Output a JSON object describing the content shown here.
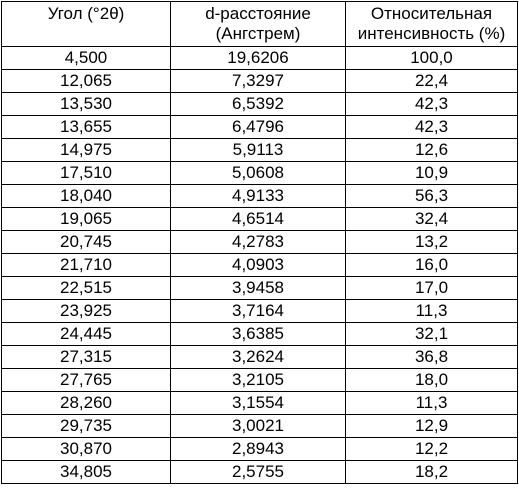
{
  "table": {
    "headers": {
      "angle": "Угол (°2θ)",
      "d_spacing_line1": "d-расстояние",
      "d_spacing_line2": "(Ангстрем)",
      "intensity_line1": "Относительная",
      "intensity_line2": "интенсивность (%)"
    },
    "rows": [
      {
        "angle": "4,500",
        "d": "19,6206",
        "intensity": "100,0"
      },
      {
        "angle": "12,065",
        "d": "7,3297",
        "intensity": "22,4"
      },
      {
        "angle": "13,530",
        "d": "6,5392",
        "intensity": "42,3"
      },
      {
        "angle": "13,655",
        "d": "6,4796",
        "intensity": "42,3"
      },
      {
        "angle": "14,975",
        "d": "5,9113",
        "intensity": "12,6"
      },
      {
        "angle": "17,510",
        "d": "5,0608",
        "intensity": "10,9"
      },
      {
        "angle": "18,040",
        "d": "4,9133",
        "intensity": "56,3"
      },
      {
        "angle": "19,065",
        "d": "4,6514",
        "intensity": "32,4"
      },
      {
        "angle": "20,745",
        "d": "4,2783",
        "intensity": "13,2"
      },
      {
        "angle": "21,710",
        "d": "4,0903",
        "intensity": "16,0"
      },
      {
        "angle": "22,515",
        "d": "3,9458",
        "intensity": "17,0"
      },
      {
        "angle": "23,925",
        "d": "3,7164",
        "intensity": "11,3"
      },
      {
        "angle": "24,445",
        "d": "3,6385",
        "intensity": "32,1"
      },
      {
        "angle": "27,315",
        "d": "3,2624",
        "intensity": "36,8"
      },
      {
        "angle": "27,765",
        "d": "3,2105",
        "intensity": "18,0"
      },
      {
        "angle": "28,260",
        "d": "3,1554",
        "intensity": "11,3"
      },
      {
        "angle": "29,735",
        "d": "3,0021",
        "intensity": "12,9"
      },
      {
        "angle": "30,870",
        "d": "2,8943",
        "intensity": "12,2"
      },
      {
        "angle": "34,805",
        "d": "2,5755",
        "intensity": "18,2"
      }
    ]
  }
}
